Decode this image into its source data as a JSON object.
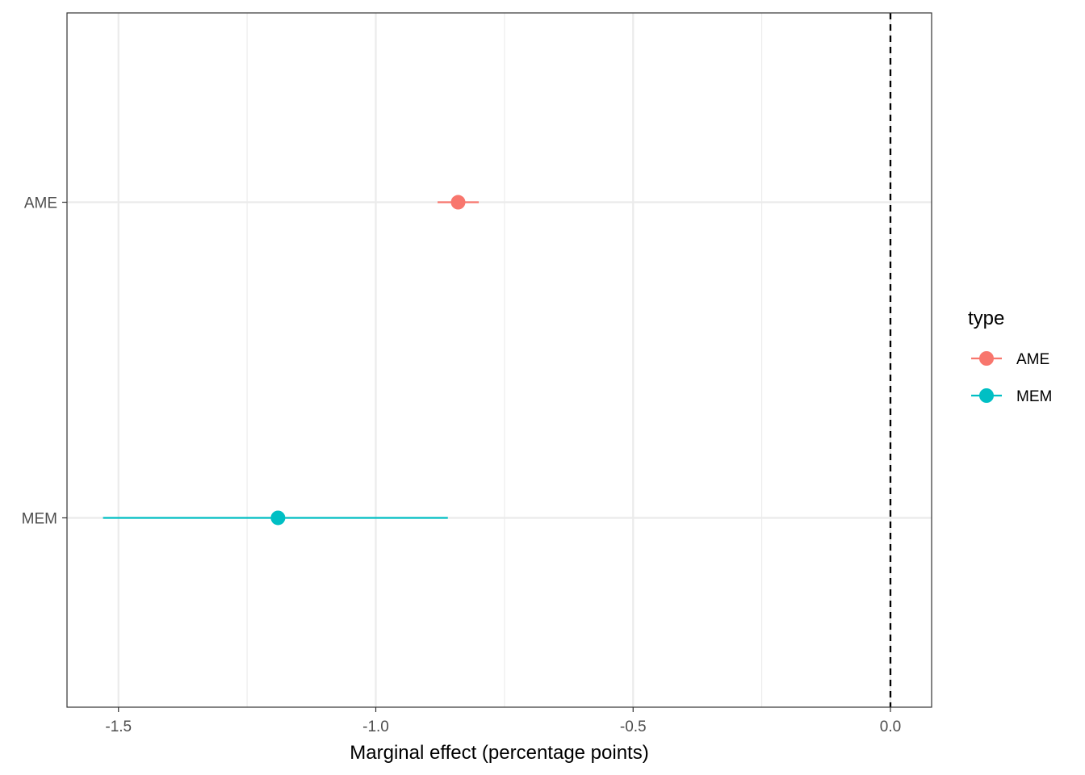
{
  "chart_data": {
    "type": "scatter",
    "subtype": "pointrange",
    "title": "",
    "xlabel": "Marginal effect (percentage points)",
    "ylabel": "",
    "xlim": [
      -1.6,
      0.08
    ],
    "x_ticks": [
      -1.5,
      -1.0,
      -0.5,
      0.0
    ],
    "x_tick_labels": [
      "-1.5",
      "-1.0",
      "-0.5",
      "0.0"
    ],
    "categories": [
      "AME",
      "MEM"
    ],
    "reference_line": {
      "x": 0.0,
      "style": "dashed",
      "color": "#000000"
    },
    "grid": true,
    "legend": {
      "title": "type",
      "position": "right",
      "entries": [
        {
          "label": "AME",
          "color": "#F8766D"
        },
        {
          "label": "MEM",
          "color": "#00BFC4"
        }
      ]
    },
    "series": [
      {
        "name": "AME",
        "category": "AME",
        "estimate": -0.84,
        "lower": -0.88,
        "upper": -0.8,
        "color": "#F8766D"
      },
      {
        "name": "MEM",
        "category": "MEM",
        "estimate": -1.19,
        "lower": -1.53,
        "upper": -0.86,
        "color": "#00BFC4"
      }
    ]
  }
}
